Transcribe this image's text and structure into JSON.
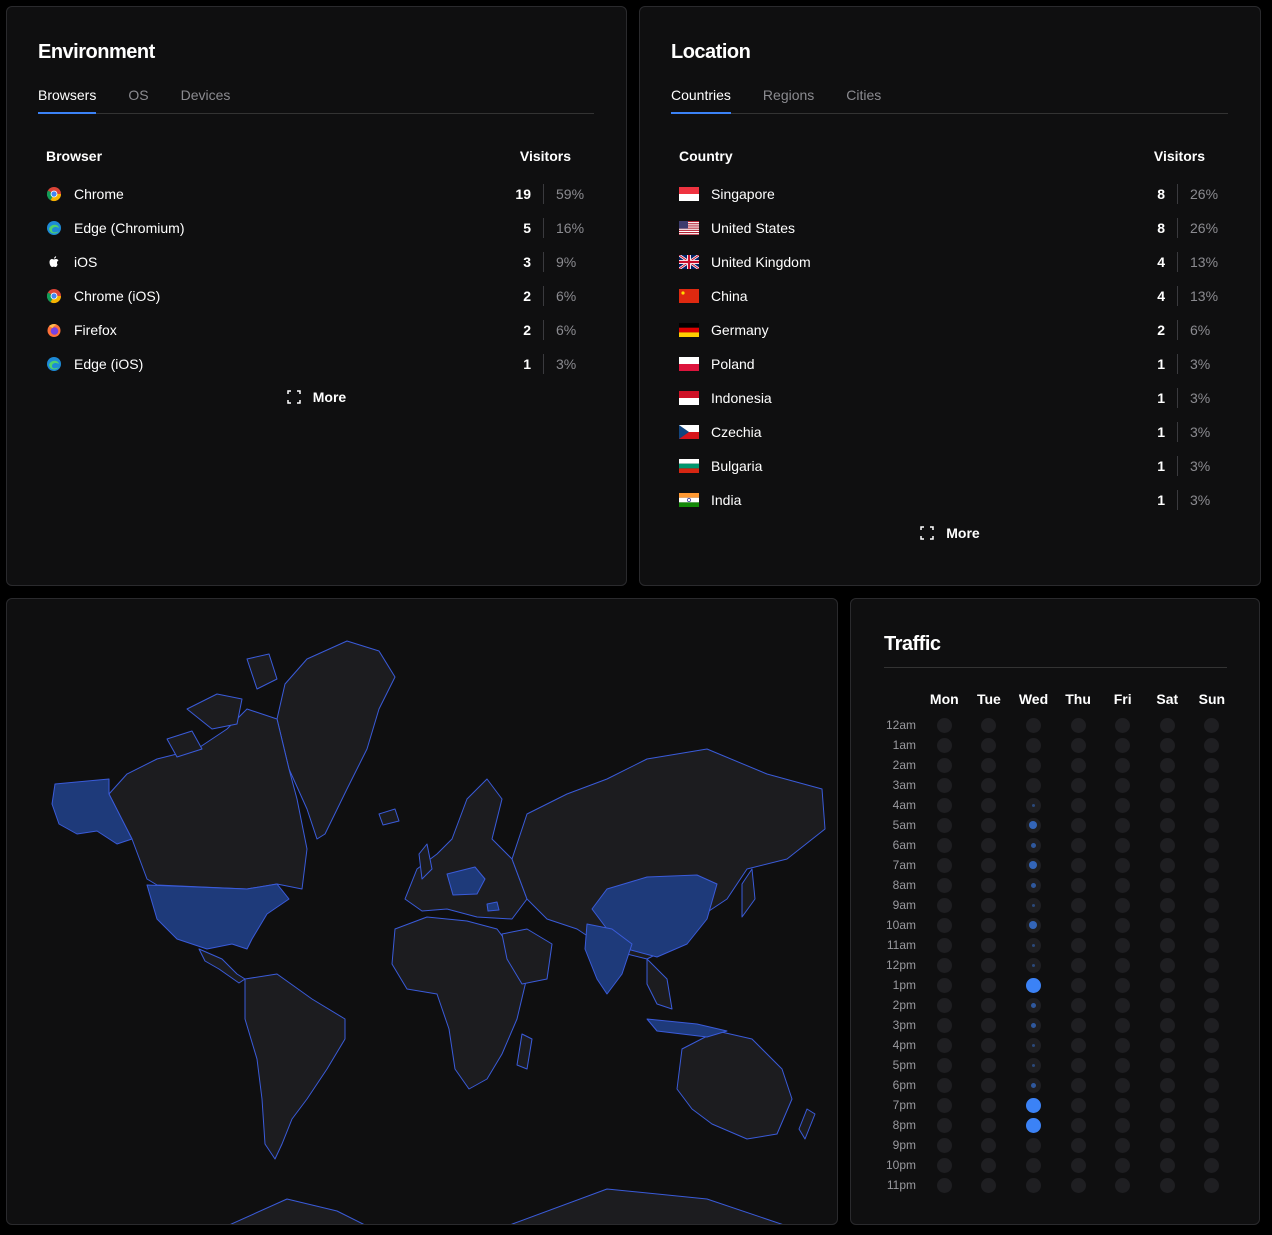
{
  "environment": {
    "title": "Environment",
    "tabs": [
      "Browsers",
      "OS",
      "Devices"
    ],
    "header_label": "Browser",
    "header_value": "Visitors",
    "rows": [
      {
        "label": "Chrome",
        "count": "19",
        "pct": "59%",
        "icon": "chrome-icon"
      },
      {
        "label": "Edge (Chromium)",
        "count": "5",
        "pct": "16%",
        "icon": "edge-icon"
      },
      {
        "label": "iOS",
        "count": "3",
        "pct": "9%",
        "icon": "apple-icon"
      },
      {
        "label": "Chrome (iOS)",
        "count": "2",
        "pct": "6%",
        "icon": "chrome-icon"
      },
      {
        "label": "Firefox",
        "count": "2",
        "pct": "6%",
        "icon": "firefox-icon"
      },
      {
        "label": "Edge (iOS)",
        "count": "1",
        "pct": "3%",
        "icon": "edge-icon"
      }
    ],
    "more": "More"
  },
  "location": {
    "title": "Location",
    "tabs": [
      "Countries",
      "Regions",
      "Cities"
    ],
    "header_label": "Country",
    "header_value": "Visitors",
    "rows": [
      {
        "label": "Singapore",
        "count": "8",
        "pct": "26%",
        "icon": "flag-sg-icon"
      },
      {
        "label": "United States",
        "count": "8",
        "pct": "26%",
        "icon": "flag-us-icon"
      },
      {
        "label": "United Kingdom",
        "count": "4",
        "pct": "13%",
        "icon": "flag-gb-icon"
      },
      {
        "label": "China",
        "count": "4",
        "pct": "13%",
        "icon": "flag-cn-icon"
      },
      {
        "label": "Germany",
        "count": "2",
        "pct": "6%",
        "icon": "flag-de-icon"
      },
      {
        "label": "Poland",
        "count": "1",
        "pct": "3%",
        "icon": "flag-pl-icon"
      },
      {
        "label": "Indonesia",
        "count": "1",
        "pct": "3%",
        "icon": "flag-id-icon"
      },
      {
        "label": "Czechia",
        "count": "1",
        "pct": "3%",
        "icon": "flag-cz-icon"
      },
      {
        "label": "Bulgaria",
        "count": "1",
        "pct": "3%",
        "icon": "flag-bg-icon"
      },
      {
        "label": "India",
        "count": "1",
        "pct": "3%",
        "icon": "flag-in-icon"
      }
    ],
    "more": "More"
  },
  "map": {
    "highlighted_countries": [
      "United States",
      "China",
      "India",
      "Germany",
      "Poland",
      "Czechia",
      "Singapore",
      "Indonesia",
      "United Kingdom",
      "Bulgaria"
    ],
    "colors": {
      "background": "#0f0f10",
      "land": "#1c1c1f",
      "highlight": "#1e3a7a",
      "border": "#3a5bd9"
    }
  },
  "traffic": {
    "title": "Traffic",
    "days": [
      "Mon",
      "Tue",
      "Wed",
      "Thu",
      "Fri",
      "Sat",
      "Sun"
    ],
    "hours": [
      "12am",
      "1am",
      "2am",
      "3am",
      "4am",
      "5am",
      "6am",
      "7am",
      "8am",
      "9am",
      "10am",
      "11am",
      "12pm",
      "1pm",
      "2pm",
      "3pm",
      "4pm",
      "5pm",
      "6pm",
      "7pm",
      "8pm",
      "9pm",
      "10pm",
      "11pm"
    ],
    "wednesday_levels": {
      "4am": 0.1,
      "5am": 0.55,
      "6am": 0.35,
      "7am": 0.55,
      "8am": 0.35,
      "9am": 0.1,
      "10am": 0.55,
      "11am": 0.1,
      "12pm": 0.1,
      "1pm": 1.0,
      "2pm": 0.35,
      "3pm": 0.35,
      "4pm": 0.1,
      "5pm": 0.1,
      "6pm": 0.35,
      "7pm": 1.0,
      "8pm": 1.0
    },
    "accent": "#3b82f6"
  }
}
